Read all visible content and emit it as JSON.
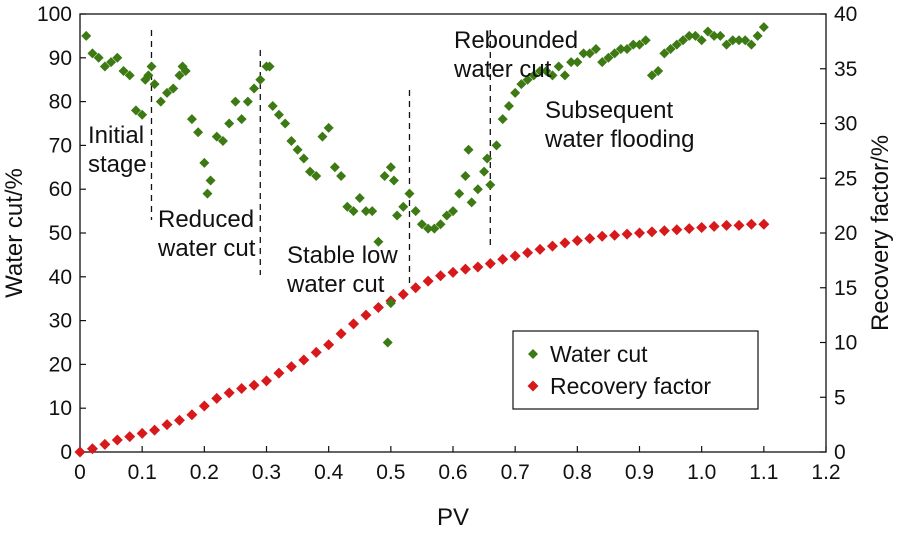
{
  "chart_data": {
    "type": "scatter",
    "xlabel": "PV",
    "ylabel": "Water cut/%",
    "y2label": "Recovery factor/%",
    "xlim": [
      0,
      1.2
    ],
    "ylim": [
      0,
      100
    ],
    "y2lim": [
      0,
      40
    ],
    "x_ticks": [
      "0",
      "0.1",
      "0.2",
      "0.3",
      "0.4",
      "0.5",
      "0.6",
      "0.7",
      "0.8",
      "0.9",
      "1.0",
      "1.1",
      "1.2"
    ],
    "y_ticks": [
      "0",
      "10",
      "20",
      "30",
      "40",
      "50",
      "60",
      "70",
      "80",
      "90",
      "100"
    ],
    "y2_ticks": [
      "0",
      "5",
      "10",
      "15",
      "20",
      "25",
      "30",
      "35",
      "40"
    ],
    "grid": false,
    "legend_position": "bottom-right",
    "phase_boundaries_pv": [
      0.115,
      0.29,
      0.53,
      0.66
    ],
    "annotations": [
      {
        "lines": [
          "Initial",
          "stage"
        ]
      },
      {
        "lines": [
          "Reduced",
          "water cut"
        ]
      },
      {
        "lines": [
          "Stable low",
          "water cut"
        ]
      },
      {
        "lines": [
          "Rebounded",
          "water cut"
        ]
      },
      {
        "lines": [
          "Subsequent",
          "water flooding"
        ]
      }
    ],
    "series": [
      {
        "name": "Water cut",
        "axis": "left",
        "color": "#3d7a14",
        "marker": "diamond",
        "points": [
          [
            0.01,
            95
          ],
          [
            0.02,
            91
          ],
          [
            0.03,
            90
          ],
          [
            0.04,
            88
          ],
          [
            0.05,
            89
          ],
          [
            0.06,
            90
          ],
          [
            0.07,
            87
          ],
          [
            0.08,
            86
          ],
          [
            0.09,
            78
          ],
          [
            0.1,
            77
          ],
          [
            0.105,
            85
          ],
          [
            0.11,
            86
          ],
          [
            0.115,
            88
          ],
          [
            0.12,
            84
          ],
          [
            0.13,
            80
          ],
          [
            0.14,
            82
          ],
          [
            0.15,
            83
          ],
          [
            0.16,
            86
          ],
          [
            0.165,
            88
          ],
          [
            0.17,
            87
          ],
          [
            0.18,
            76
          ],
          [
            0.19,
            73
          ],
          [
            0.2,
            66
          ],
          [
            0.205,
            59
          ],
          [
            0.21,
            62
          ],
          [
            0.22,
            72
          ],
          [
            0.23,
            71
          ],
          [
            0.24,
            75
          ],
          [
            0.25,
            80
          ],
          [
            0.26,
            76
          ],
          [
            0.27,
            80
          ],
          [
            0.28,
            83
          ],
          [
            0.29,
            85
          ],
          [
            0.3,
            88
          ],
          [
            0.305,
            88
          ],
          [
            0.31,
            79
          ],
          [
            0.32,
            77
          ],
          [
            0.33,
            75
          ],
          [
            0.34,
            71
          ],
          [
            0.35,
            69
          ],
          [
            0.36,
            67
          ],
          [
            0.37,
            64
          ],
          [
            0.38,
            63
          ],
          [
            0.39,
            72
          ],
          [
            0.4,
            74
          ],
          [
            0.41,
            65
          ],
          [
            0.42,
            63
          ],
          [
            0.43,
            56
          ],
          [
            0.44,
            55
          ],
          [
            0.45,
            58
          ],
          [
            0.46,
            55
          ],
          [
            0.47,
            55
          ],
          [
            0.48,
            48
          ],
          [
            0.49,
            63
          ],
          [
            0.5,
            65
          ],
          [
            0.505,
            62
          ],
          [
            0.51,
            54
          ],
          [
            0.52,
            56
          ],
          [
            0.53,
            59
          ],
          [
            0.54,
            55
          ],
          [
            0.55,
            52
          ],
          [
            0.56,
            51
          ],
          [
            0.57,
            51
          ],
          [
            0.58,
            52
          ],
          [
            0.59,
            54
          ],
          [
            0.6,
            55
          ],
          [
            0.61,
            59
          ],
          [
            0.62,
            63
          ],
          [
            0.625,
            69
          ],
          [
            0.63,
            57
          ],
          [
            0.64,
            60
          ],
          [
            0.65,
            64
          ],
          [
            0.655,
            67
          ],
          [
            0.66,
            61
          ],
          [
            0.67,
            70
          ],
          [
            0.68,
            76
          ],
          [
            0.69,
            79
          ],
          [
            0.7,
            82
          ],
          [
            0.71,
            84
          ],
          [
            0.72,
            85
          ],
          [
            0.73,
            86
          ],
          [
            0.74,
            87
          ],
          [
            0.75,
            87
          ],
          [
            0.76,
            86
          ],
          [
            0.77,
            88
          ],
          [
            0.78,
            86
          ],
          [
            0.79,
            89
          ],
          [
            0.8,
            89
          ],
          [
            0.81,
            91
          ],
          [
            0.82,
            91
          ],
          [
            0.83,
            92
          ],
          [
            0.84,
            89
          ],
          [
            0.85,
            90
          ],
          [
            0.86,
            91
          ],
          [
            0.87,
            92
          ],
          [
            0.88,
            92
          ],
          [
            0.89,
            93
          ],
          [
            0.9,
            93
          ],
          [
            0.91,
            94
          ],
          [
            0.92,
            86
          ],
          [
            0.93,
            87
          ],
          [
            0.94,
            91
          ],
          [
            0.95,
            92
          ],
          [
            0.96,
            93
          ],
          [
            0.97,
            94
          ],
          [
            0.98,
            95
          ],
          [
            0.99,
            95
          ],
          [
            1.0,
            94
          ],
          [
            1.01,
            96
          ],
          [
            1.02,
            95
          ],
          [
            1.03,
            95
          ],
          [
            1.04,
            93
          ],
          [
            1.05,
            94
          ],
          [
            1.06,
            94
          ],
          [
            1.07,
            94
          ],
          [
            1.08,
            93
          ],
          [
            1.09,
            95
          ],
          [
            1.1,
            97
          ],
          [
            0.495,
            25
          ],
          [
            0.5,
            34
          ]
        ]
      },
      {
        "name": "Recovery factor",
        "axis": "right",
        "color": "#d7191c",
        "marker": "diamond",
        "points": [
          [
            0.0,
            0.0
          ],
          [
            0.02,
            0.3
          ],
          [
            0.04,
            0.7
          ],
          [
            0.06,
            1.1
          ],
          [
            0.08,
            1.4
          ],
          [
            0.1,
            1.7
          ],
          [
            0.12,
            2.0
          ],
          [
            0.14,
            2.5
          ],
          [
            0.16,
            2.9
          ],
          [
            0.18,
            3.4
          ],
          [
            0.2,
            4.2
          ],
          [
            0.22,
            4.9
          ],
          [
            0.24,
            5.4
          ],
          [
            0.26,
            5.8
          ],
          [
            0.28,
            6.1
          ],
          [
            0.3,
            6.5
          ],
          [
            0.32,
            7.2
          ],
          [
            0.34,
            7.8
          ],
          [
            0.36,
            8.4
          ],
          [
            0.38,
            9.1
          ],
          [
            0.4,
            9.8
          ],
          [
            0.42,
            10.8
          ],
          [
            0.44,
            11.7
          ],
          [
            0.46,
            12.5
          ],
          [
            0.48,
            13.2
          ],
          [
            0.5,
            13.8
          ],
          [
            0.52,
            14.4
          ],
          [
            0.54,
            15.0
          ],
          [
            0.56,
            15.6
          ],
          [
            0.58,
            16.1
          ],
          [
            0.6,
            16.4
          ],
          [
            0.62,
            16.7
          ],
          [
            0.64,
            16.9
          ],
          [
            0.66,
            17.2
          ],
          [
            0.68,
            17.6
          ],
          [
            0.7,
            17.9
          ],
          [
            0.72,
            18.2
          ],
          [
            0.74,
            18.5
          ],
          [
            0.76,
            18.8
          ],
          [
            0.78,
            19.1
          ],
          [
            0.8,
            19.3
          ],
          [
            0.82,
            19.5
          ],
          [
            0.84,
            19.7
          ],
          [
            0.86,
            19.8
          ],
          [
            0.88,
            19.9
          ],
          [
            0.9,
            20.0
          ],
          [
            0.92,
            20.1
          ],
          [
            0.94,
            20.2
          ],
          [
            0.96,
            20.3
          ],
          [
            0.98,
            20.4
          ],
          [
            1.0,
            20.5
          ],
          [
            1.02,
            20.6
          ],
          [
            1.04,
            20.7
          ],
          [
            1.06,
            20.7
          ],
          [
            1.08,
            20.8
          ],
          [
            1.1,
            20.8
          ]
        ]
      }
    ]
  }
}
